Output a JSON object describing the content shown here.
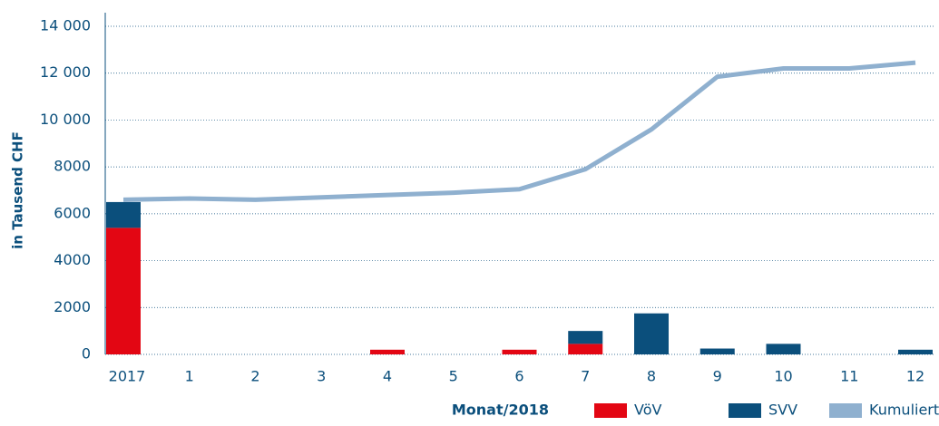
{
  "chart_data": {
    "type": "bar",
    "stacked": true,
    "categories": [
      "2017",
      "1",
      "2",
      "3",
      "4",
      "5",
      "6",
      "7",
      "8",
      "9",
      "10",
      "11",
      "12"
    ],
    "series": [
      {
        "name": "VöV",
        "type": "bar",
        "color": "#e30613",
        "values": [
          5400,
          0,
          0,
          0,
          200,
          0,
          200,
          450,
          0,
          0,
          0,
          0,
          0
        ]
      },
      {
        "name": "SVV",
        "type": "bar",
        "color": "#0b4f7c",
        "values": [
          1100,
          0,
          0,
          0,
          0,
          0,
          0,
          550,
          1750,
          250,
          450,
          0,
          200
        ]
      },
      {
        "name": "Kumuliert",
        "type": "line",
        "color": "#8fb0cf",
        "values": [
          6600,
          6650,
          6600,
          6700,
          6800,
          6900,
          7050,
          7900,
          9600,
          11850,
          12200,
          12200,
          12450
        ]
      }
    ],
    "ylabel": "in Tausend CHF",
    "xlabel": "Monat/2018",
    "ylim": [
      0,
      14000
    ],
    "yticks": [
      0,
      2000,
      4000,
      6000,
      8000,
      {
        "value": 10000,
        "label": "10 000"
      },
      {
        "value": 12000,
        "label": "12 000"
      },
      {
        "value": 14000,
        "label": "14 000"
      }
    ],
    "grid": true,
    "legend": "bottom"
  }
}
